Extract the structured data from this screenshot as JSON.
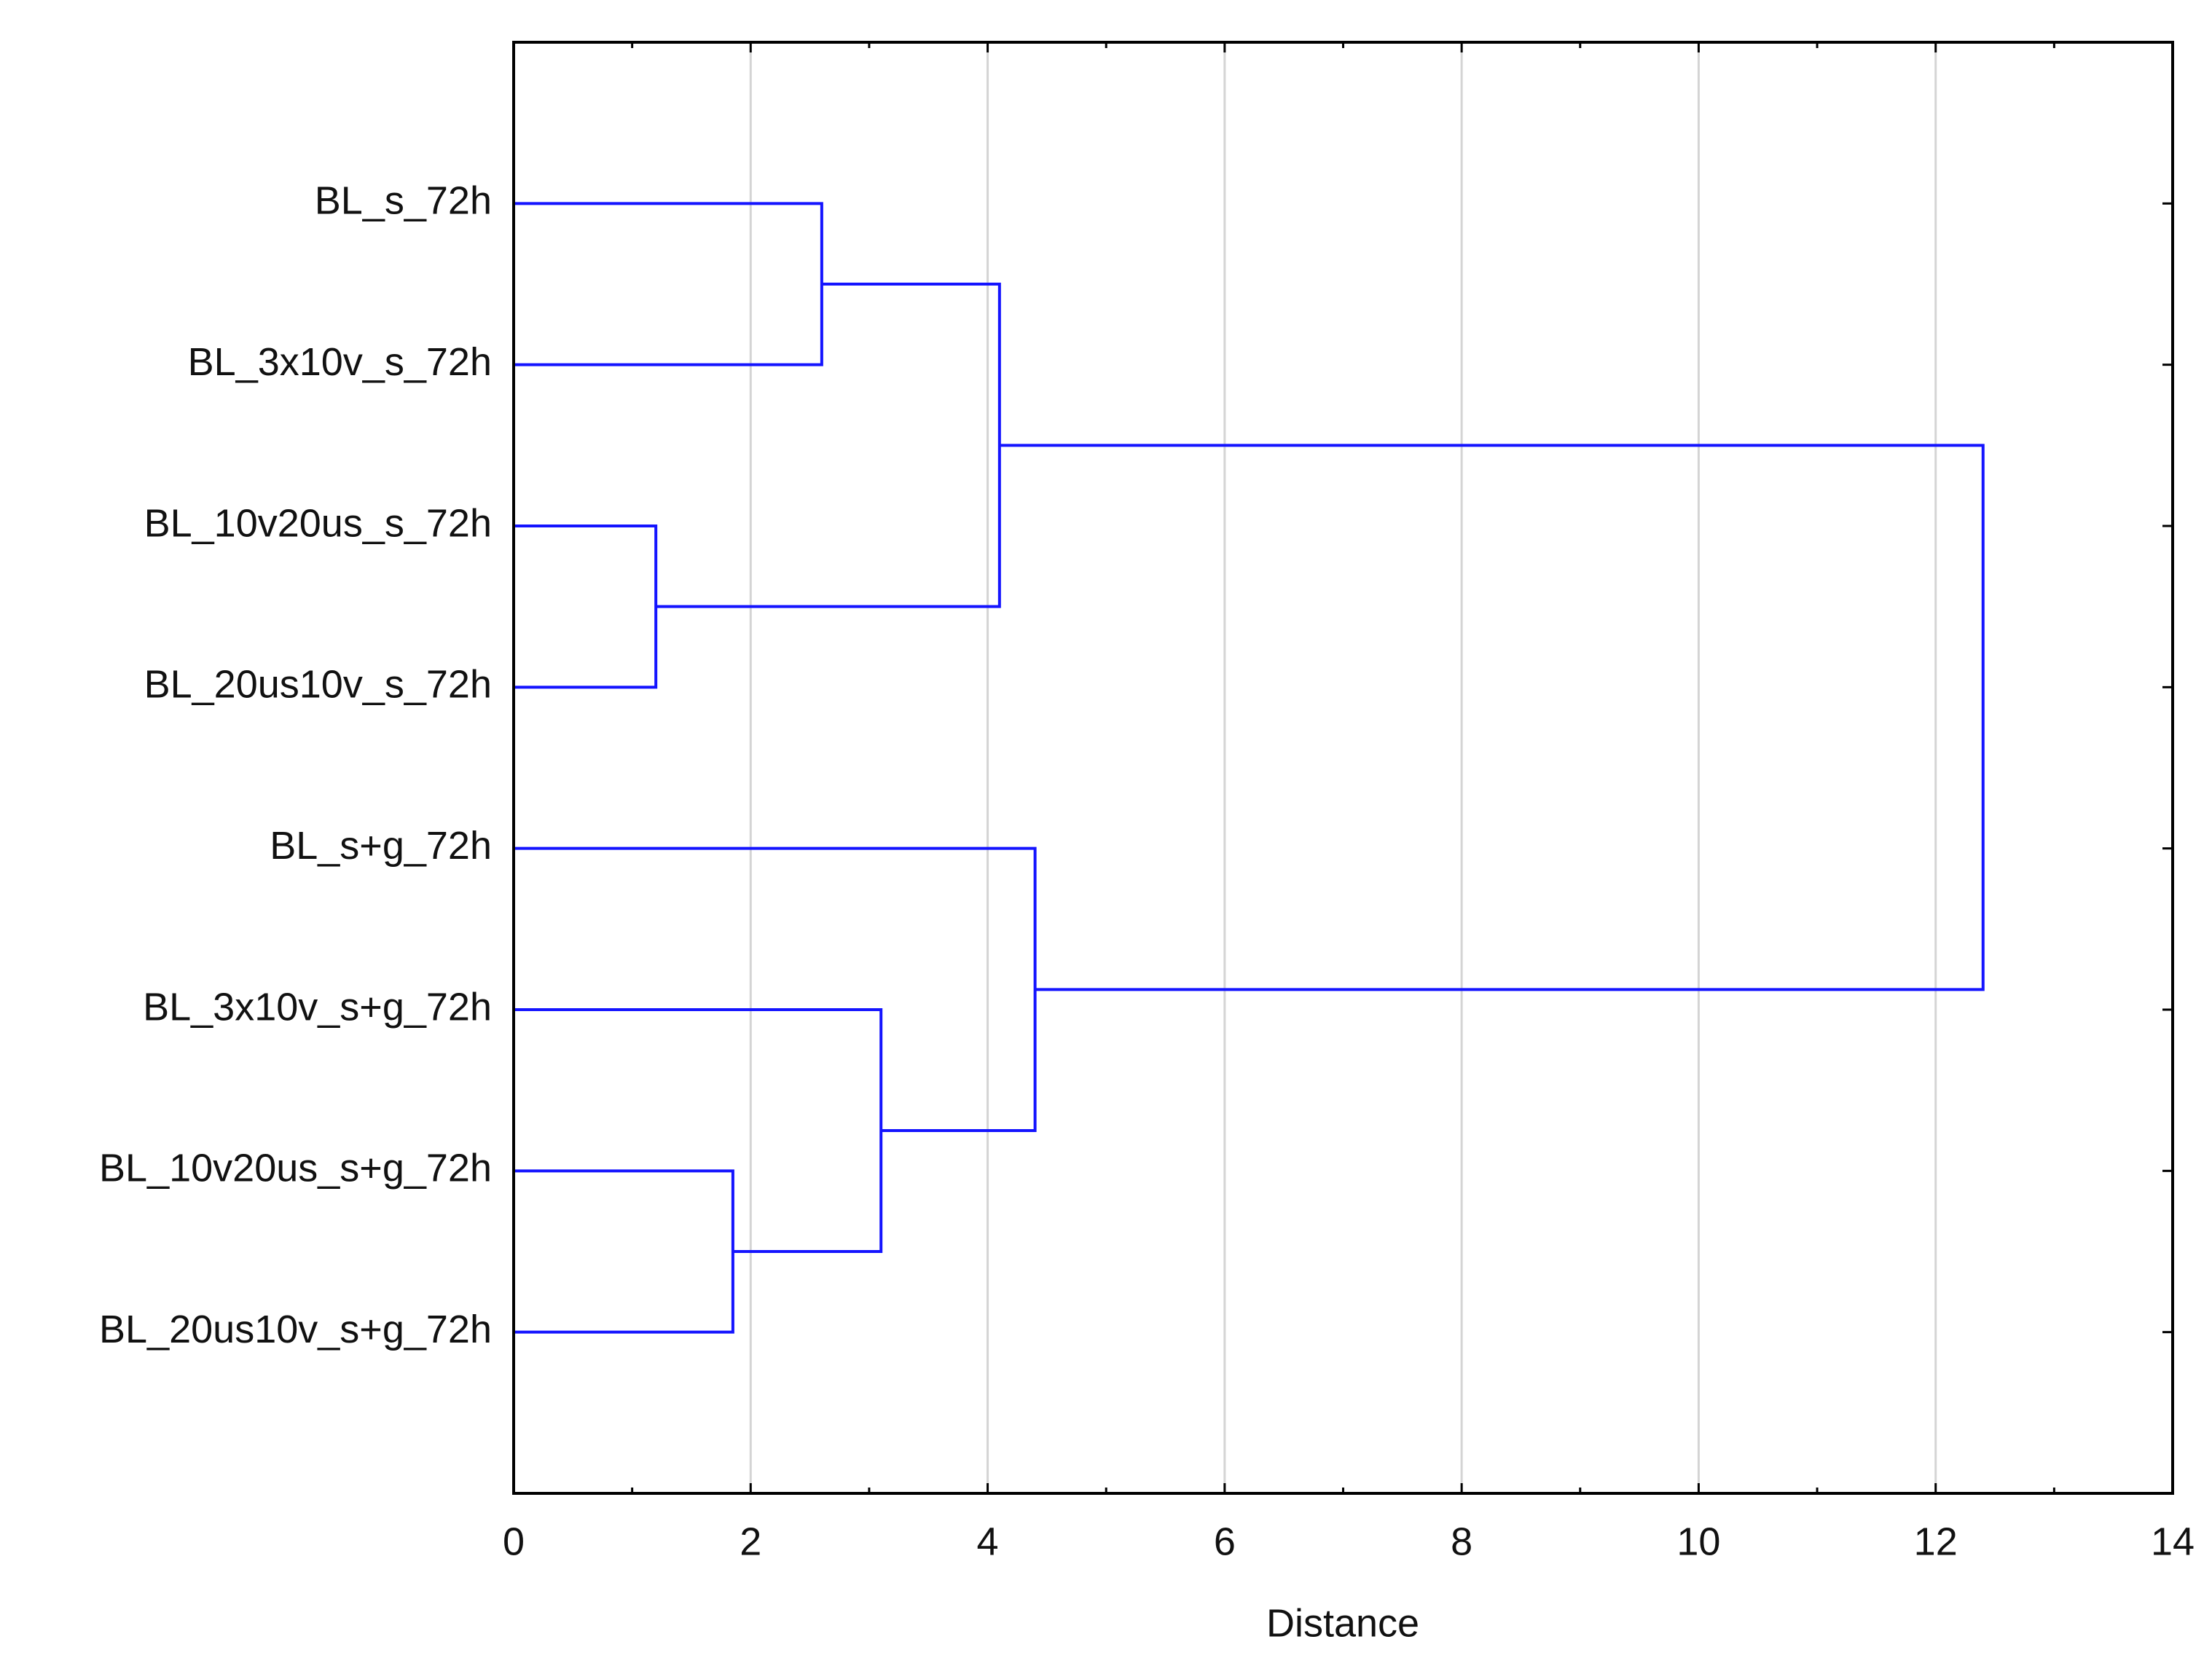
{
  "chart_data": {
    "type": "dendrogram",
    "labels": [
      "BL_s_72h",
      "BL_3x10v_s_72h",
      "BL_10v20us_s_72h",
      "BL_20us10v_s_72h",
      "BL_s+g_72h",
      "BL_3x10v_s+g_72h",
      "BL_10v20us_s+g_72h",
      "BL_20us10v_s+g_72h"
    ],
    "merges": [
      {
        "children": [
          0,
          1
        ],
        "height": 2.6
      },
      {
        "children": [
          2,
          3
        ],
        "height": 1.2
      },
      {
        "children": [
          8,
          9
        ],
        "height": 4.1
      },
      {
        "children": [
          6,
          7
        ],
        "height": 1.85
      },
      {
        "children": [
          5,
          11
        ],
        "height": 3.1
      },
      {
        "children": [
          4,
          12
        ],
        "height": 4.4
      },
      {
        "children": [
          10,
          13
        ],
        "height": 12.4
      }
    ],
    "color": "#1414ff",
    "x_label": "Distance",
    "xlim": [
      0,
      14
    ],
    "xticks": [
      0,
      2,
      4,
      6,
      8,
      10,
      12,
      14
    ],
    "xminorticks": [
      1,
      3,
      5,
      7,
      9,
      11,
      13
    ],
    "grid": true
  }
}
